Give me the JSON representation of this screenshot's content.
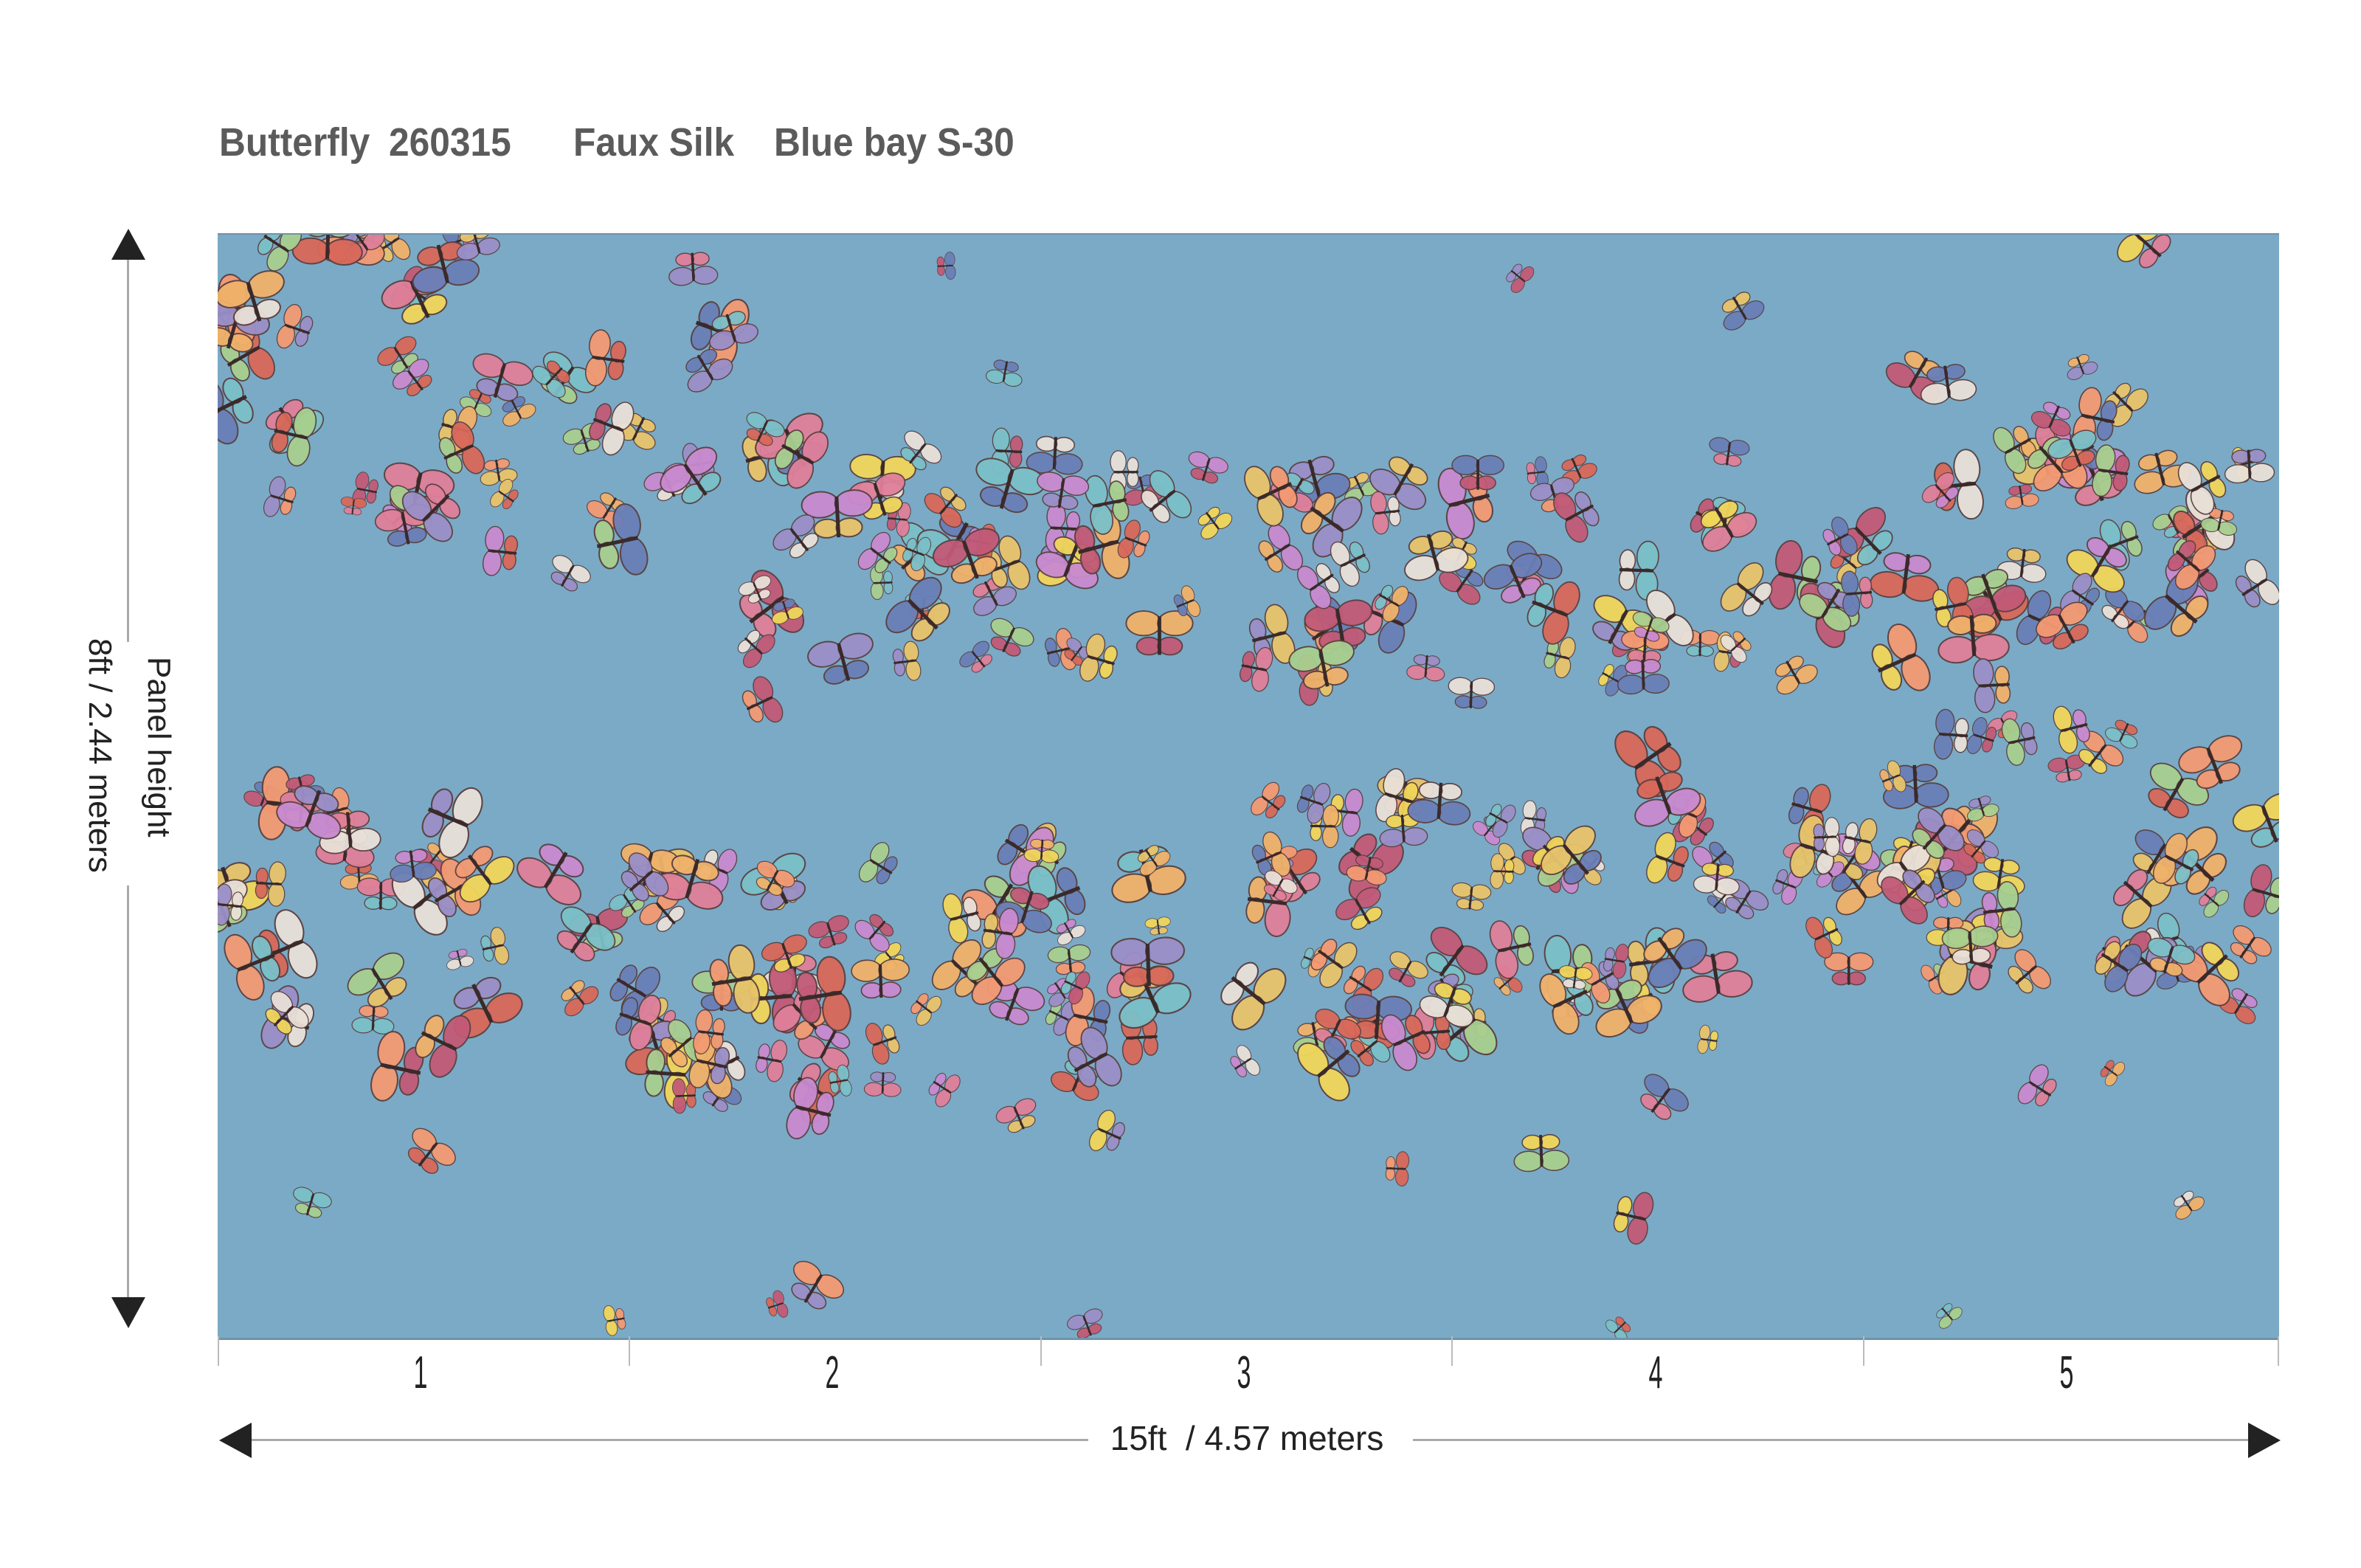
{
  "title": {
    "pattern": "Butterfly",
    "code": "260315",
    "material": "Faux Silk",
    "colorway": "Blue bay S-30"
  },
  "panel": {
    "background_color": "#7aaac6",
    "panel_numbers": [
      "1",
      "2",
      "3",
      "4",
      "5"
    ]
  },
  "dimensions": {
    "width_label": "15ft  / 4.57 meters",
    "height_title": "Panel height",
    "height_label": "8ft / 2.44 meters"
  }
}
